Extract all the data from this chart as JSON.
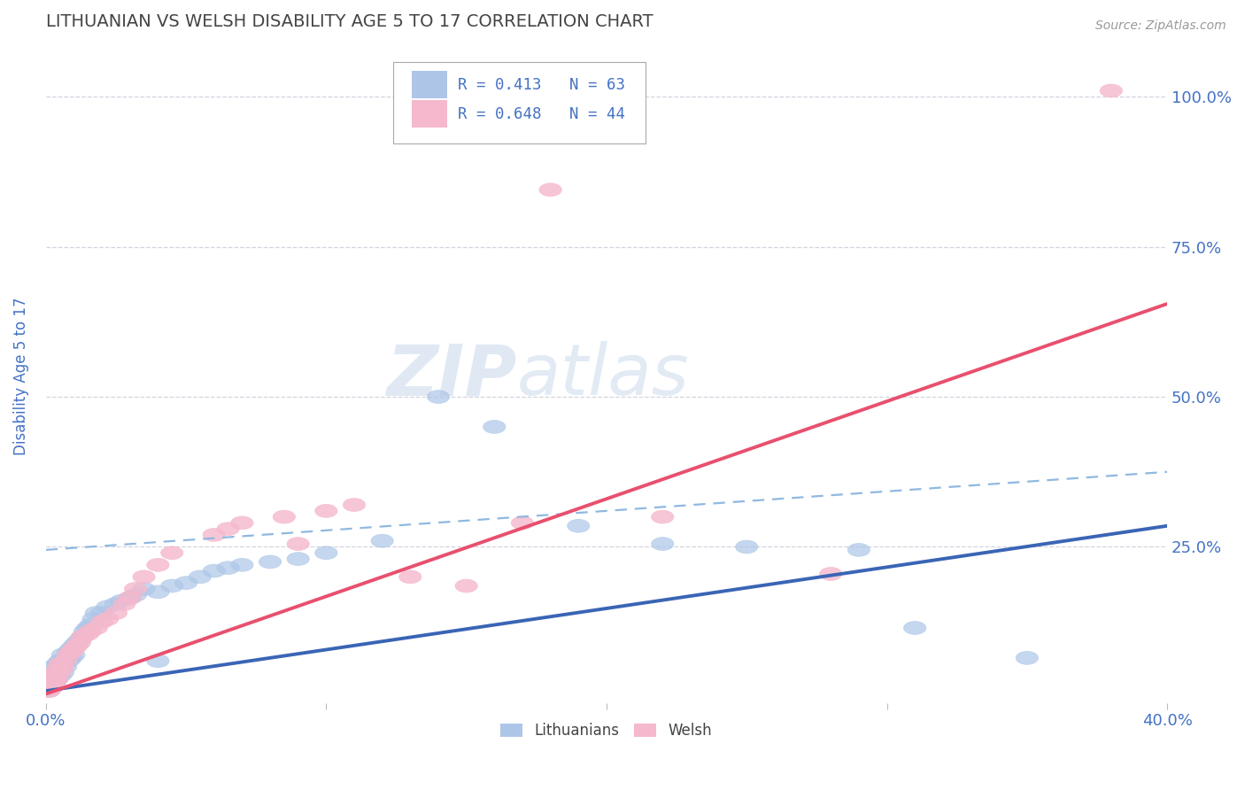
{
  "title": "LITHUANIAN VS WELSH DISABILITY AGE 5 TO 17 CORRELATION CHART",
  "source": "Source: ZipAtlas.com",
  "ylabel": "Disability Age 5 to 17",
  "xlim": [
    0.0,
    0.4
  ],
  "ylim": [
    -0.01,
    1.08
  ],
  "ytick_positions": [
    0.25,
    0.5,
    0.75,
    1.0
  ],
  "ytick_labels": [
    "25.0%",
    "50.0%",
    "75.0%",
    "100.0%"
  ],
  "legend_R1": "R = 0.413",
  "legend_N1": "N = 63",
  "legend_R2": "R = 0.648",
  "legend_N2": "N = 44",
  "legend_label1": "Lithuanians",
  "legend_label2": "Welsh",
  "scatter_color1": "#adc6e8",
  "scatter_color2": "#f5b8cc",
  "line_color1": "#3a65b5",
  "line_color2": "#e8506e",
  "dashed_line_color": "#90b8e0",
  "watermark_zip": "ZIP",
  "watermark_atlas": "atlas",
  "background_color": "#ffffff",
  "grid_color": "#c8c8d8",
  "title_color": "#444444",
  "axis_label_color": "#4472c4",
  "tick_color": "#4472c4",
  "lit_line_x0": 0.0,
  "lit_line_y0": 0.01,
  "lit_line_x1": 0.4,
  "lit_line_y1": 0.285,
  "welsh_line_x0": 0.0,
  "welsh_line_y0": 0.005,
  "welsh_line_x1": 0.4,
  "welsh_line_y1": 0.655,
  "dashed_line_x0": 0.0,
  "dashed_line_y0": 0.245,
  "dashed_line_x1": 0.4,
  "dashed_line_y1": 0.375,
  "lit_x": [
    0.001,
    0.001,
    0.001,
    0.002,
    0.002,
    0.002,
    0.002,
    0.003,
    0.003,
    0.003,
    0.003,
    0.004,
    0.004,
    0.004,
    0.005,
    0.005,
    0.005,
    0.006,
    0.006,
    0.006,
    0.007,
    0.007,
    0.008,
    0.008,
    0.009,
    0.009,
    0.01,
    0.01,
    0.011,
    0.012,
    0.013,
    0.014,
    0.015,
    0.016,
    0.017,
    0.018,
    0.02,
    0.022,
    0.025,
    0.027,
    0.03,
    0.032,
    0.035,
    0.04,
    0.04,
    0.045,
    0.05,
    0.055,
    0.06,
    0.065,
    0.07,
    0.08,
    0.09,
    0.1,
    0.12,
    0.14,
    0.16,
    0.19,
    0.22,
    0.25,
    0.29,
    0.31,
    0.35
  ],
  "lit_y": [
    0.01,
    0.02,
    0.025,
    0.015,
    0.025,
    0.03,
    0.035,
    0.02,
    0.03,
    0.04,
    0.05,
    0.03,
    0.04,
    0.055,
    0.035,
    0.048,
    0.06,
    0.04,
    0.055,
    0.07,
    0.05,
    0.065,
    0.06,
    0.075,
    0.065,
    0.08,
    0.07,
    0.085,
    0.09,
    0.095,
    0.1,
    0.11,
    0.115,
    0.12,
    0.13,
    0.14,
    0.14,
    0.15,
    0.155,
    0.16,
    0.165,
    0.17,
    0.18,
    0.06,
    0.175,
    0.185,
    0.19,
    0.2,
    0.21,
    0.215,
    0.22,
    0.225,
    0.23,
    0.24,
    0.26,
    0.5,
    0.45,
    0.285,
    0.255,
    0.25,
    0.245,
    0.115,
    0.065
  ],
  "welsh_x": [
    0.001,
    0.001,
    0.002,
    0.002,
    0.003,
    0.003,
    0.004,
    0.004,
    0.005,
    0.005,
    0.006,
    0.007,
    0.008,
    0.009,
    0.01,
    0.011,
    0.012,
    0.013,
    0.015,
    0.016,
    0.018,
    0.02,
    0.022,
    0.025,
    0.028,
    0.03,
    0.032,
    0.035,
    0.04,
    0.045,
    0.06,
    0.065,
    0.07,
    0.085,
    0.09,
    0.1,
    0.11,
    0.13,
    0.15,
    0.17,
    0.18,
    0.22,
    0.28,
    0.38
  ],
  "welsh_y": [
    0.01,
    0.02,
    0.015,
    0.028,
    0.022,
    0.035,
    0.03,
    0.045,
    0.04,
    0.055,
    0.048,
    0.06,
    0.07,
    0.075,
    0.08,
    0.085,
    0.09,
    0.1,
    0.105,
    0.11,
    0.115,
    0.125,
    0.13,
    0.14,
    0.155,
    0.165,
    0.18,
    0.2,
    0.22,
    0.24,
    0.27,
    0.28,
    0.29,
    0.3,
    0.255,
    0.31,
    0.32,
    0.2,
    0.185,
    0.29,
    0.845,
    0.3,
    0.205,
    1.01
  ]
}
